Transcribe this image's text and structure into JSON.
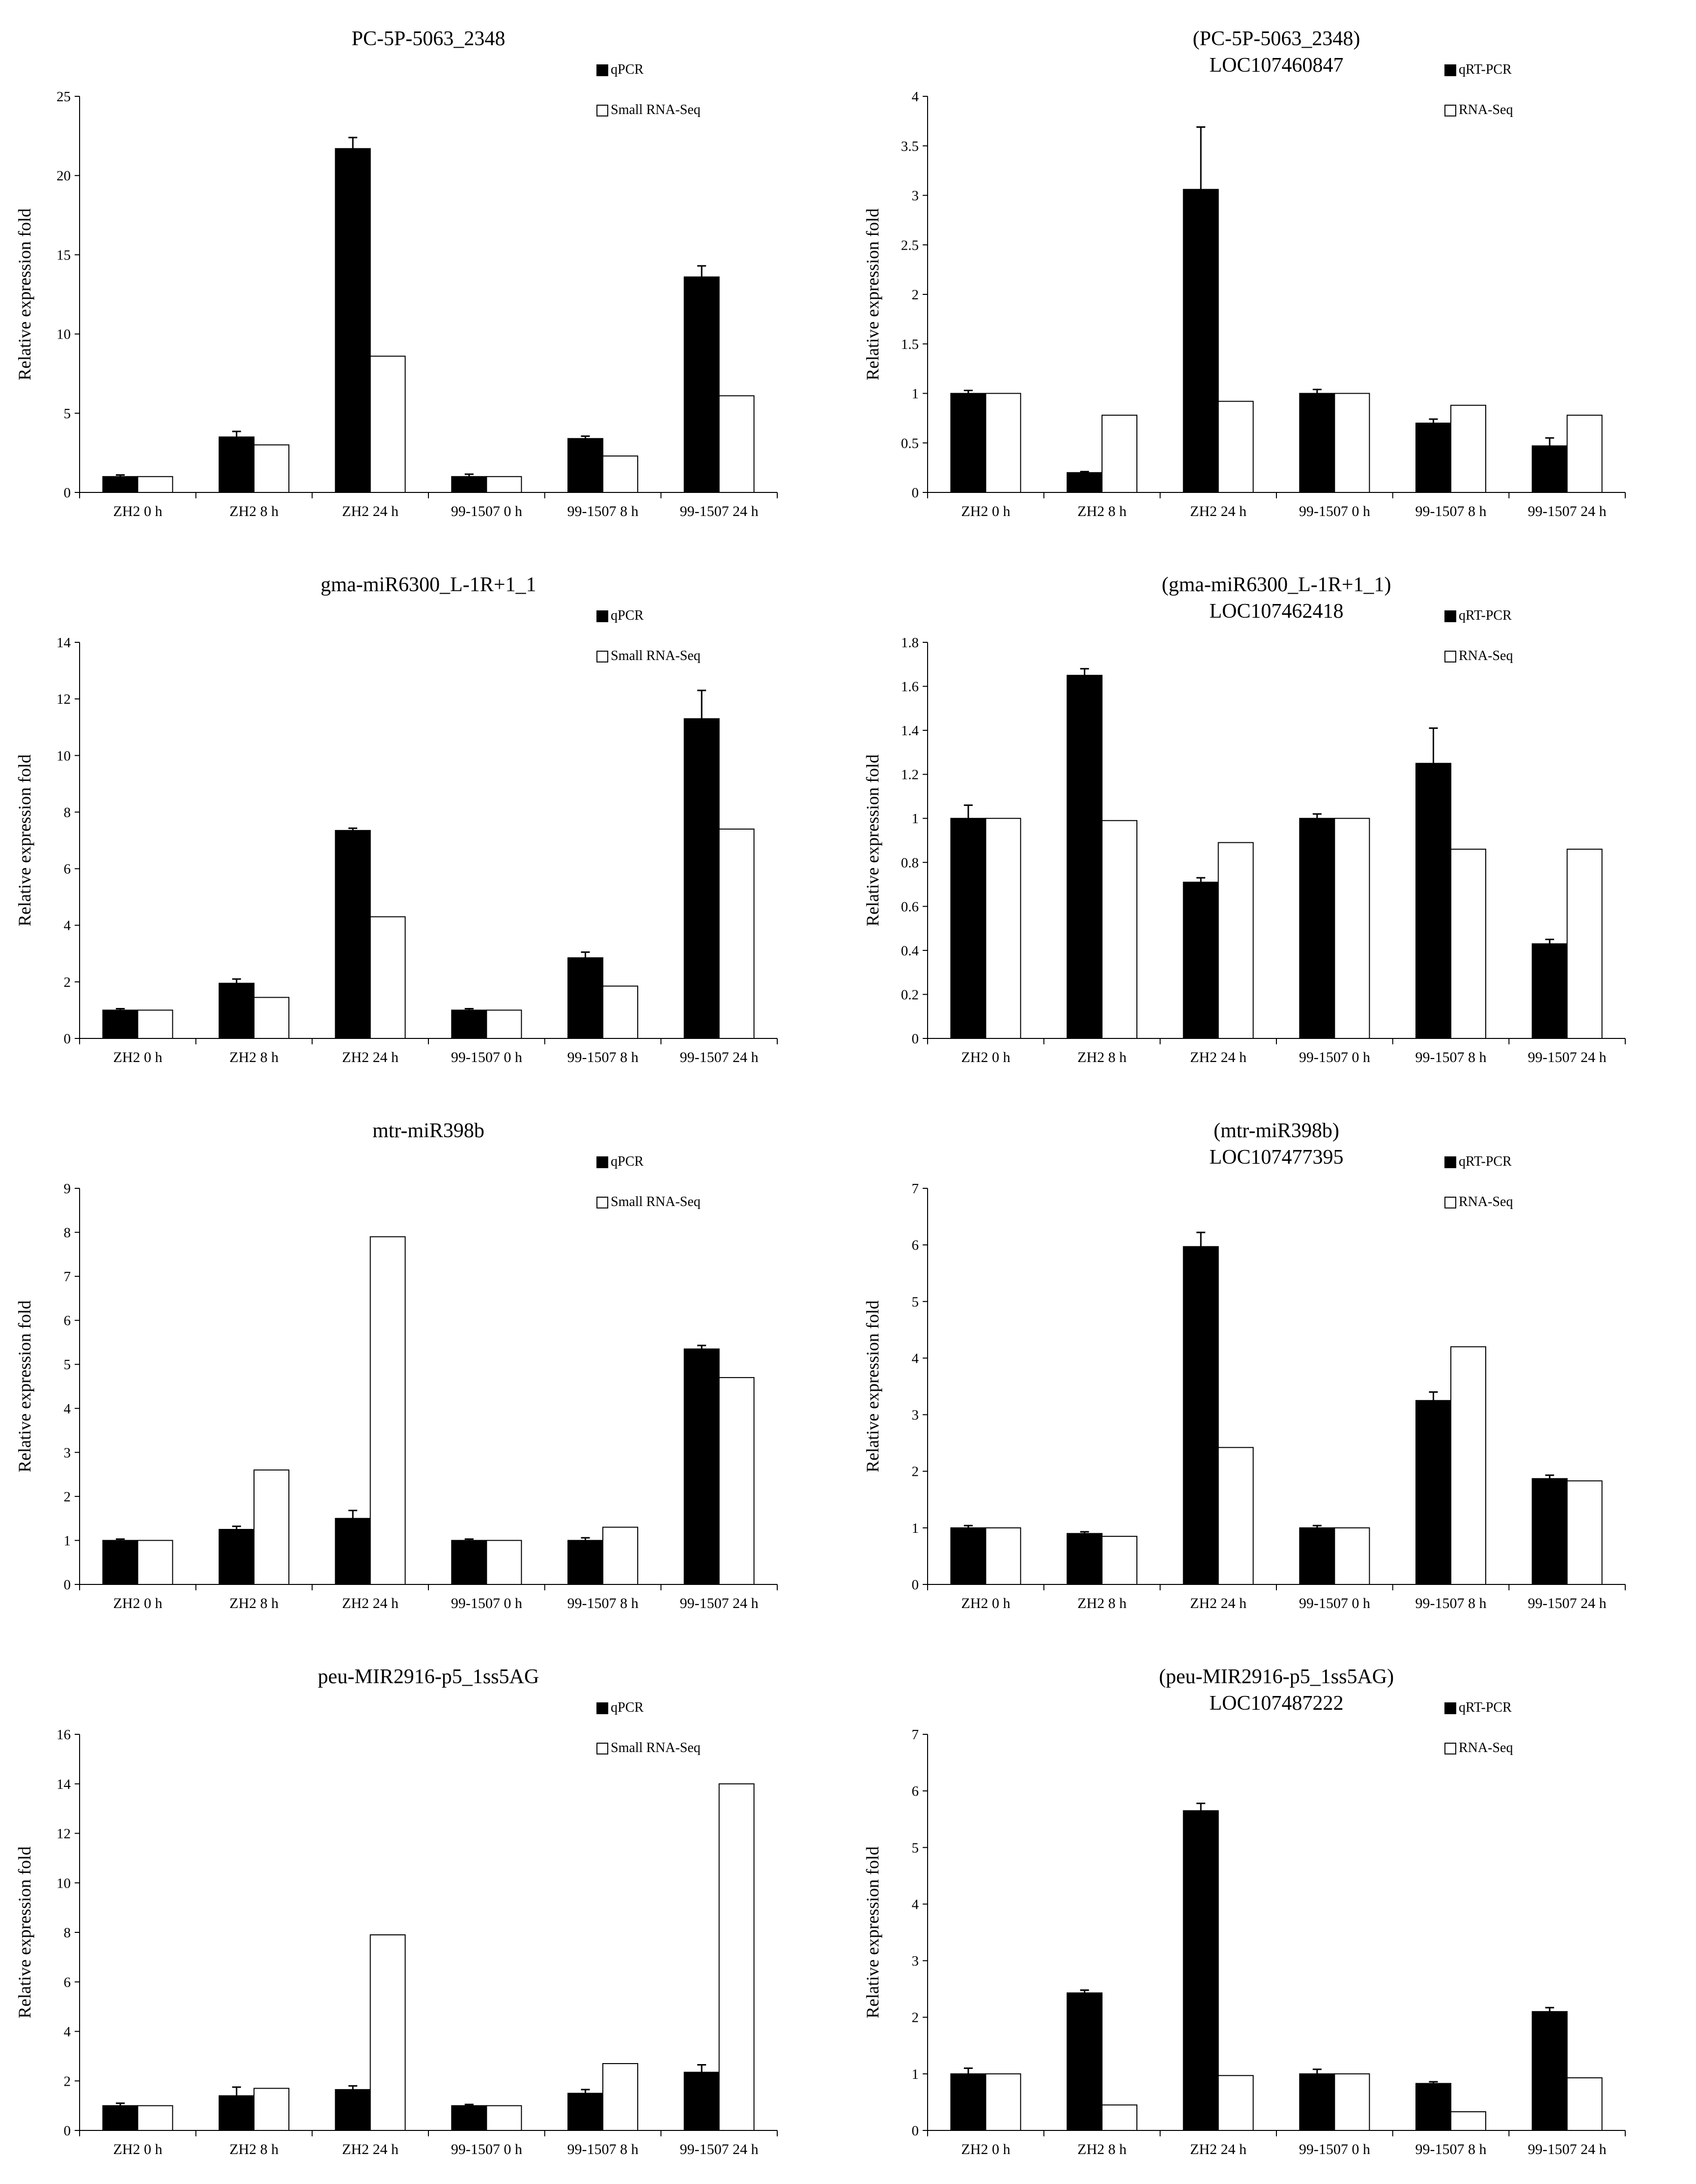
{
  "chart_data": [
    {
      "type": "bar",
      "title_lines": [
        "PC-5P-5063_2348"
      ],
      "ylabel": "Relative expression fold",
      "ylim": [
        0,
        25
      ],
      "yticks": [
        0,
        5,
        10,
        15,
        20,
        25
      ],
      "categories": [
        "ZH2 0 h",
        "ZH2 8 h",
        "ZH2 24 h",
        "99-1507 0 h",
        "99-1507 8 h",
        "99-1507 24 h"
      ],
      "series": [
        {
          "name": "qPCR",
          "color": "#000000",
          "values": [
            1.0,
            3.5,
            21.7,
            1.0,
            3.4,
            13.6
          ],
          "errors": [
            0.1,
            0.35,
            0.7,
            0.15,
            0.15,
            0.7
          ]
        },
        {
          "name": "Small RNA-Seq",
          "color": "#ffffff",
          "values": [
            1.0,
            3.0,
            8.6,
            1.0,
            2.3,
            6.1
          ]
        }
      ]
    },
    {
      "type": "bar",
      "title_lines": [
        "(PC-5P-5063_2348)",
        "LOC107460847"
      ],
      "ylabel": "Relative expression fold",
      "ylim": [
        0,
        4
      ],
      "yticks": [
        0,
        0.5,
        1,
        1.5,
        2,
        2.5,
        3,
        3.5,
        4
      ],
      "categories": [
        "ZH2 0 h",
        "ZH2 8 h",
        "ZH2 24 h",
        "99-1507 0 h",
        "99-1507 8 h",
        "99-1507 24 h"
      ],
      "series": [
        {
          "name": "qRT-PCR",
          "color": "#000000",
          "values": [
            1.0,
            0.2,
            3.06,
            1.0,
            0.7,
            0.47
          ],
          "errors": [
            0.03,
            0.01,
            0.63,
            0.04,
            0.04,
            0.08
          ]
        },
        {
          "name": "RNA-Seq",
          "color": "#ffffff",
          "values": [
            1.0,
            0.78,
            0.92,
            1.0,
            0.88,
            0.78
          ]
        }
      ]
    },
    {
      "type": "bar",
      "title_lines": [
        "gma-miR6300_L-1R+1_1"
      ],
      "ylabel": "Relative expression fold",
      "ylim": [
        0,
        14
      ],
      "yticks": [
        0,
        2,
        4,
        6,
        8,
        10,
        12,
        14
      ],
      "categories": [
        "ZH2 0 h",
        "ZH2 8 h",
        "ZH2 24 h",
        "99-1507 0 h",
        "99-1507 8 h",
        "99-1507 24 h"
      ],
      "series": [
        {
          "name": "qPCR",
          "color": "#000000",
          "values": [
            1.0,
            1.95,
            7.35,
            1.0,
            2.85,
            11.3
          ],
          "errors": [
            0.05,
            0.15,
            0.08,
            0.05,
            0.2,
            1.0
          ]
        },
        {
          "name": "Small RNA-Seq",
          "color": "#ffffff",
          "values": [
            1.0,
            1.45,
            4.3,
            1.0,
            1.85,
            7.4
          ]
        }
      ]
    },
    {
      "type": "bar",
      "title_lines": [
        "(gma-miR6300_L-1R+1_1)",
        "LOC107462418"
      ],
      "ylabel": "Relative expression fold",
      "ylim": [
        0,
        1.8
      ],
      "yticks": [
        0,
        0.2,
        0.4,
        0.6,
        0.8,
        1,
        1.2,
        1.4,
        1.6,
        1.8
      ],
      "categories": [
        "ZH2 0 h",
        "ZH2 8 h",
        "ZH2 24 h",
        "99-1507 0 h",
        "99-1507 8 h",
        "99-1507 24 h"
      ],
      "series": [
        {
          "name": "qRT-PCR",
          "color": "#000000",
          "values": [
            1.0,
            1.65,
            0.71,
            1.0,
            1.25,
            0.43
          ],
          "errors": [
            0.06,
            0.03,
            0.02,
            0.02,
            0.16,
            0.02
          ]
        },
        {
          "name": "RNA-Seq",
          "color": "#ffffff",
          "values": [
            1.0,
            0.99,
            0.89,
            1.0,
            0.86,
            0.86
          ]
        }
      ]
    },
    {
      "type": "bar",
      "title_lines": [
        "mtr-miR398b"
      ],
      "ylabel": "Relative expression fold",
      "ylim": [
        0,
        9
      ],
      "yticks": [
        0,
        1,
        2,
        3,
        4,
        5,
        6,
        7,
        8,
        9
      ],
      "categories": [
        "ZH2 0 h",
        "ZH2 8 h",
        "ZH2 24 h",
        "99-1507 0 h",
        "99-1507 8 h",
        "99-1507 24 h"
      ],
      "series": [
        {
          "name": "qPCR",
          "color": "#000000",
          "values": [
            1.0,
            1.25,
            1.5,
            1.0,
            1.0,
            5.35
          ],
          "errors": [
            0.03,
            0.07,
            0.18,
            0.03,
            0.06,
            0.08
          ]
        },
        {
          "name": "Small RNA-Seq",
          "color": "#ffffff",
          "values": [
            1.0,
            2.6,
            7.9,
            1.0,
            1.3,
            4.7
          ]
        }
      ]
    },
    {
      "type": "bar",
      "title_lines": [
        "(mtr-miR398b)",
        "LOC107477395"
      ],
      "ylabel": "Relative expression fold",
      "ylim": [
        0,
        7
      ],
      "yticks": [
        0,
        1,
        2,
        3,
        4,
        5,
        6,
        7
      ],
      "categories": [
        "ZH2 0 h",
        "ZH2 8 h",
        "ZH2 24 h",
        "99-1507 0 h",
        "99-1507 8 h",
        "99-1507 24 h"
      ],
      "series": [
        {
          "name": "qRT-PCR",
          "color": "#000000",
          "values": [
            1.0,
            0.9,
            5.97,
            1.0,
            3.25,
            1.87
          ],
          "errors": [
            0.04,
            0.03,
            0.25,
            0.04,
            0.15,
            0.06
          ]
        },
        {
          "name": "RNA-Seq",
          "color": "#ffffff",
          "values": [
            1.0,
            0.85,
            2.42,
            1.0,
            4.2,
            1.83
          ]
        }
      ]
    },
    {
      "type": "bar",
      "title_lines": [
        "peu-MIR2916-p5_1ss5AG"
      ],
      "ylabel": "Relative expression fold",
      "ylim": [
        0,
        16
      ],
      "yticks": [
        0,
        2,
        4,
        6,
        8,
        10,
        12,
        14,
        16
      ],
      "categories": [
        "ZH2 0 h",
        "ZH2 8 h",
        "ZH2 24 h",
        "99-1507 0 h",
        "99-1507 8 h",
        "99-1507 24 h"
      ],
      "series": [
        {
          "name": "qPCR",
          "color": "#000000",
          "values": [
            1.0,
            1.4,
            1.65,
            1.0,
            1.5,
            2.35
          ],
          "errors": [
            0.1,
            0.35,
            0.15,
            0.05,
            0.15,
            0.3
          ]
        },
        {
          "name": "Small RNA-Seq",
          "color": "#ffffff",
          "values": [
            1.0,
            1.7,
            7.9,
            1.0,
            2.7,
            14.0
          ]
        }
      ]
    },
    {
      "type": "bar",
      "title_lines": [
        "(peu-MIR2916-p5_1ss5AG)",
        "LOC107487222"
      ],
      "ylabel": "Relative expression fold",
      "ylim": [
        0,
        7
      ],
      "yticks": [
        0,
        1,
        2,
        3,
        4,
        5,
        6,
        7
      ],
      "categories": [
        "ZH2 0 h",
        "ZH2 8 h",
        "ZH2 24 h",
        "99-1507 0 h",
        "99-1507 8 h",
        "99-1507 24 h"
      ],
      "series": [
        {
          "name": "qRT-PCR",
          "color": "#000000",
          "values": [
            1.0,
            2.43,
            5.65,
            1.0,
            0.83,
            2.1
          ],
          "errors": [
            0.1,
            0.05,
            0.13,
            0.08,
            0.03,
            0.07
          ]
        },
        {
          "name": "RNA-Seq",
          "color": "#ffffff",
          "values": [
            1.0,
            0.45,
            0.97,
            1.0,
            0.33,
            0.93
          ]
        }
      ]
    }
  ]
}
